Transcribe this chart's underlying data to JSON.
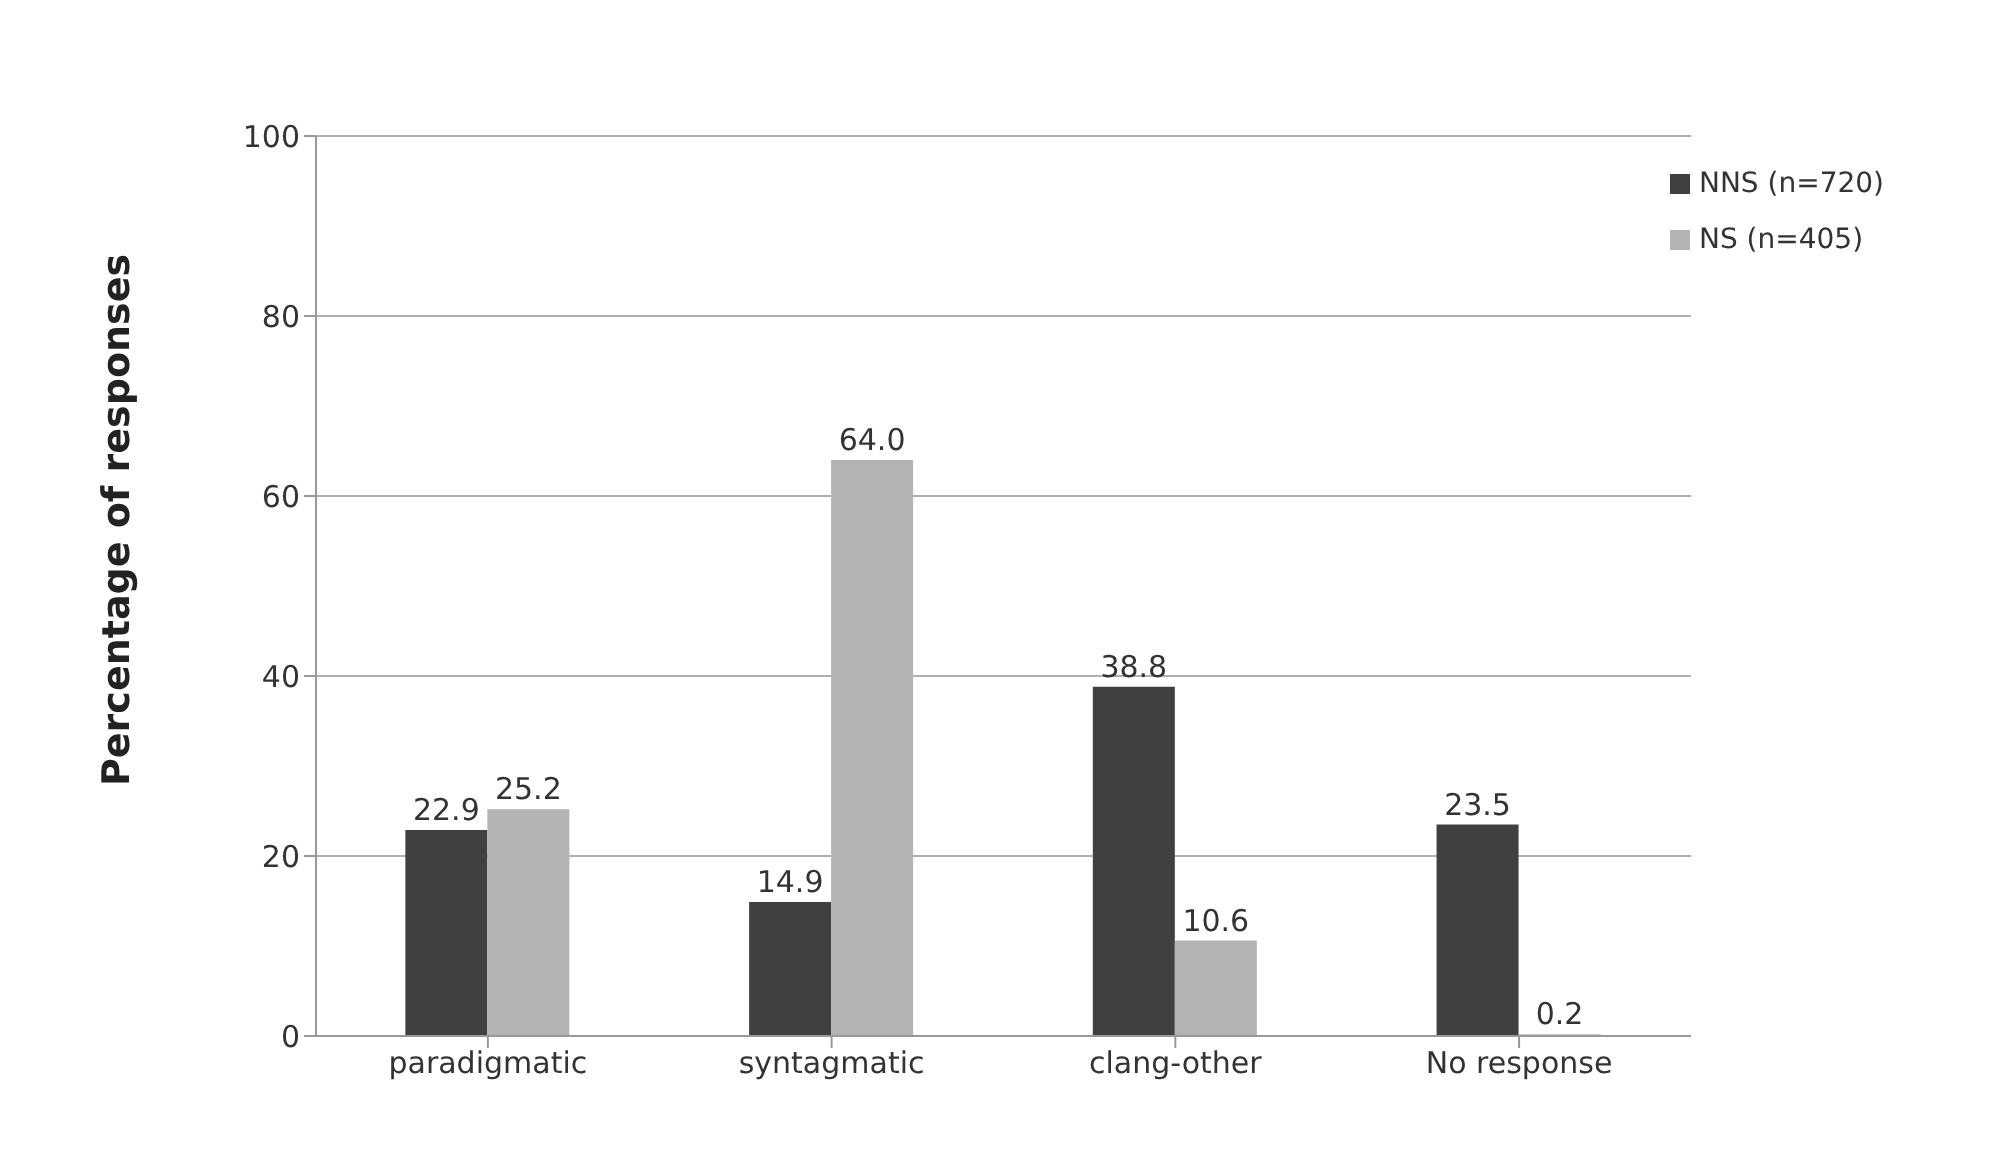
{
  "chart_data": {
    "type": "bar",
    "ylabel": "Percentage of responses",
    "categories": [
      "paradigmatic",
      "syntagmatic",
      "clang-other",
      "No response"
    ],
    "series": [
      {
        "name": "NNS (n=720)",
        "color": "#404040",
        "values": [
          22.9,
          14.9,
          38.8,
          23.5
        ],
        "value_labels": [
          "22.9",
          "14.9",
          "38.8",
          "23.5"
        ]
      },
      {
        "name": "NS (n=405)",
        "color": "#b3b3b3",
        "values": [
          25.2,
          64.0,
          10.6,
          0.2
        ],
        "value_labels": [
          "25.2",
          "64.0",
          "10.6",
          "0.2"
        ]
      }
    ],
    "ylim": [
      0,
      100
    ],
    "yticks": [
      0,
      20,
      40,
      60,
      80,
      100
    ],
    "grid": "y",
    "legend": "top right"
  }
}
